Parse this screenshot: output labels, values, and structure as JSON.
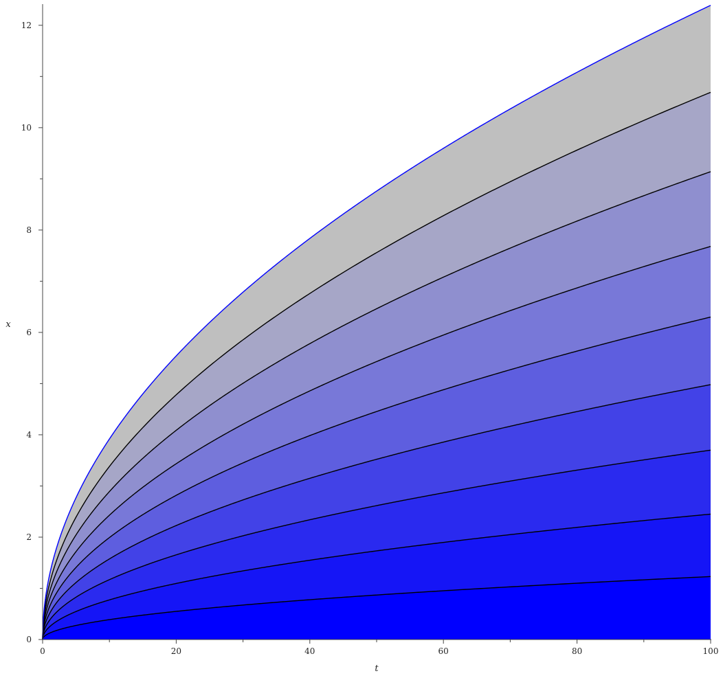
{
  "chart_data": {
    "type": "area",
    "title": "",
    "xlabel": "t",
    "ylabel": "x",
    "xlim": [
      0,
      100
    ],
    "ylim": [
      0,
      12.4
    ],
    "x_ticks": [
      0,
      20,
      40,
      60,
      80,
      100
    ],
    "x_tick_labels": [
      "0",
      "20",
      "40",
      "60",
      "80",
      "100"
    ],
    "y_ticks": [
      0,
      2,
      4,
      6,
      8,
      10,
      12
    ],
    "y_tick_labels": [
      "0",
      "2",
      "4",
      "6",
      "8",
      "10",
      "12"
    ],
    "x_minor_step": 10,
    "y_minor_step": 1,
    "grid": false,
    "legend": "none",
    "x": [
      0,
      1,
      2,
      5,
      10,
      20,
      40,
      60,
      80,
      100
    ],
    "series": [
      {
        "values": [
          0,
          0.12,
          0.17,
          0.27,
          0.39,
          0.55,
          0.78,
          0.95,
          1.1,
          1.23
        ],
        "color": "#000000",
        "fill": "#0000ff"
      },
      {
        "values": [
          0,
          0.25,
          0.35,
          0.55,
          0.78,
          1.1,
          1.55,
          1.9,
          2.19,
          2.45
        ],
        "color": "#000000",
        "fill": "#1515f6"
      },
      {
        "values": [
          0,
          0.37,
          0.52,
          0.83,
          1.17,
          1.66,
          2.34,
          2.87,
          3.31,
          3.7
        ],
        "color": "#000000",
        "fill": "#2a2aef"
      },
      {
        "values": [
          0,
          0.5,
          0.7,
          1.11,
          1.57,
          2.23,
          3.15,
          3.86,
          4.46,
          4.98
        ],
        "color": "#000000",
        "fill": "#4242e7"
      },
      {
        "values": [
          0,
          0.63,
          0.89,
          1.41,
          1.99,
          2.82,
          3.99,
          4.88,
          5.64,
          6.3
        ],
        "color": "#000000",
        "fill": "#5e5edf"
      },
      {
        "values": [
          0,
          0.77,
          1.09,
          1.72,
          2.43,
          3.43,
          4.86,
          5.95,
          6.87,
          7.68
        ],
        "color": "#000000",
        "fill": "#7878d8"
      },
      {
        "values": [
          0,
          0.91,
          1.29,
          2.04,
          2.89,
          4.09,
          5.78,
          7.08,
          8.18,
          9.14
        ],
        "color": "#000000",
        "fill": "#8f8fcf"
      },
      {
        "values": [
          0,
          1.07,
          1.51,
          2.39,
          3.38,
          4.78,
          6.76,
          8.28,
          9.56,
          10.69
        ],
        "color": "#000000",
        "fill": "#a6a6c7"
      },
      {
        "values": [
          0,
          1.24,
          1.75,
          2.77,
          3.92,
          5.54,
          7.84,
          9.6,
          11.08,
          12.39
        ],
        "color": "#0000ff",
        "fill": "#bfbfbf"
      }
    ]
  }
}
